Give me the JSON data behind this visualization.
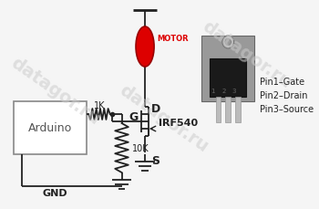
{
  "bg_color": "#f5f5f5",
  "watermark_text": "datagor.ru",
  "watermark_color": "#cccccc",
  "watermark_fontsize": 14,
  "line_color": "#222222",
  "red_color": "#dd0000",
  "arduino_label": "Arduino",
  "gnd_label": "GND",
  "motor_label": "MOTOR",
  "mosfet_label": "IRF540",
  "pin1_label": "Pin1–Gate",
  "pin2_label": "Pin2–Drain",
  "pin3_label": "Pin3–Source",
  "r1_label": "1K",
  "r2_label": "10K",
  "g_label": "G",
  "d_label": "D",
  "s_label": "S"
}
